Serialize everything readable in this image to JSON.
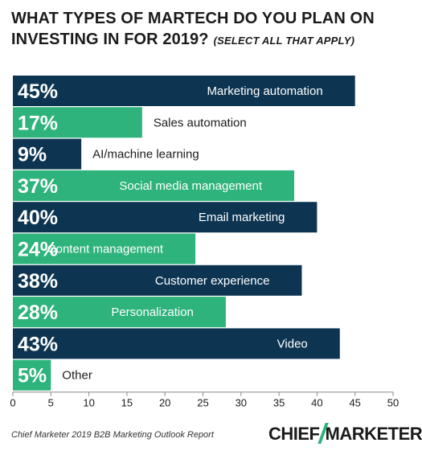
{
  "title": {
    "line1": "WHAT TYPES OF MARTECH DO YOU PLAN ON",
    "line2": "INVESTING IN FOR 2019?",
    "subtitle": "(SELECT ALL THAT APPLY)"
  },
  "source": "Chief Marketer 2019 B2B Marketing Outlook Report",
  "logo": {
    "left": "CHIEF",
    "right": "MARKETER"
  },
  "colors": {
    "dark": "#0d3552",
    "green": "#2db37b",
    "text_dark": "#1b1b1b",
    "axis": "#8a8a8a",
    "white": "#ffffff"
  },
  "chart_data": {
    "type": "bar",
    "orientation": "horizontal",
    "categories": [
      "Marketing automation",
      "Sales automation",
      "AI/machine learning",
      "Social media management",
      "Email marketing",
      "Content management",
      "Customer experience",
      "Personalization",
      "Video",
      "Other"
    ],
    "values": [
      45,
      17,
      9,
      37,
      40,
      24,
      38,
      28,
      43,
      5
    ],
    "value_labels": [
      "45%",
      "17%",
      "9%",
      "37%",
      "40%",
      "24%",
      "38%",
      "28%",
      "43%",
      "5%"
    ],
    "bar_colors": [
      "dark",
      "green",
      "dark",
      "green",
      "dark",
      "green",
      "dark",
      "green",
      "dark",
      "green"
    ],
    "xlim": [
      0,
      50
    ],
    "xticks": [
      0,
      5,
      10,
      15,
      20,
      25,
      30,
      35,
      40,
      45,
      50
    ],
    "xlabel": "",
    "ylabel": "",
    "grid": false,
    "legend": "none"
  }
}
